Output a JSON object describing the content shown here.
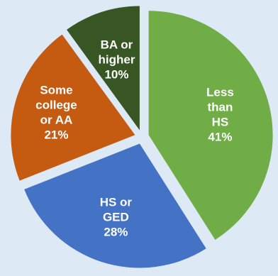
{
  "chart_data": {
    "type": "pie",
    "title": "",
    "legend": "none",
    "slices": [
      {
        "name": "Less than HS",
        "label_lines": [
          "Less",
          "than",
          "HS"
        ],
        "value": 41,
        "value_label": "41%",
        "color": "#70ad47"
      },
      {
        "name": "HS or GED",
        "label_lines": [
          "HS or",
          "GED"
        ],
        "value": 28,
        "value_label": "28%",
        "color": "#4472c4"
      },
      {
        "name": "Some college or AA",
        "label_lines": [
          "Some",
          "college",
          "or AA"
        ],
        "value": 21,
        "value_label": "21%",
        "color": "#c55a11"
      },
      {
        "name": "BA or higher",
        "label_lines": [
          "BA or",
          "higher"
        ],
        "value": 10,
        "value_label": "10%",
        "color": "#375623"
      }
    ],
    "background": "#dde9f4"
  }
}
